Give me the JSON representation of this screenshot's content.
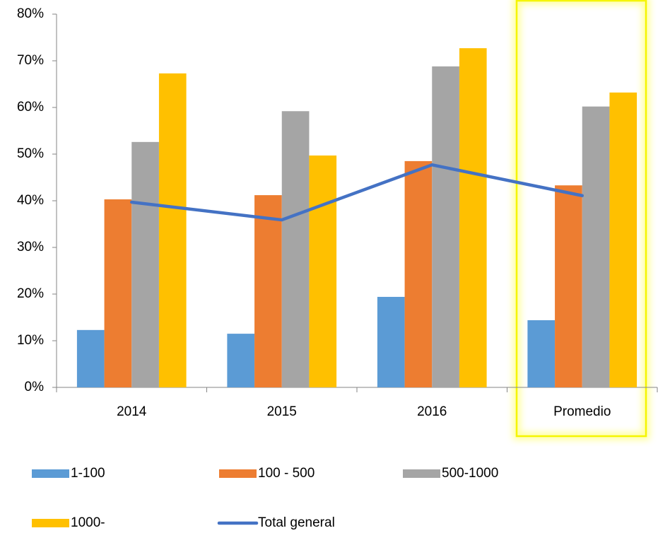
{
  "chart_data": {
    "type": "bar",
    "categories": [
      "2014",
      "2015",
      "2016",
      "Promedio"
    ],
    "series": [
      {
        "name": "1-100",
        "color": "#5b9bd5",
        "values": [
          12.3,
          11.5,
          19.4,
          14.4
        ]
      },
      {
        "name": "100 - 500",
        "color": "#ed7d31",
        "values": [
          40.3,
          41.2,
          48.5,
          43.3
        ]
      },
      {
        "name": "500-1000",
        "color": "#a5a5a5",
        "values": [
          52.6,
          59.2,
          68.8,
          60.2
        ]
      },
      {
        "name": "1000-",
        "color": "#ffc000",
        "values": [
          67.3,
          49.7,
          72.7,
          63.2
        ]
      },
      {
        "name": "Total general",
        "color": "#4472c4",
        "type": "line",
        "values": [
          39.7,
          35.9,
          47.7,
          41.1
        ]
      }
    ],
    "ylim": [
      0,
      80
    ],
    "yticks": [
      {
        "value": 0,
        "label": "0%"
      },
      {
        "value": 10,
        "label": "10%"
      },
      {
        "value": 20,
        "label": "20%"
      },
      {
        "value": 30,
        "label": "30%"
      },
      {
        "value": 40,
        "label": "40%"
      },
      {
        "value": 50,
        "label": "50%"
      },
      {
        "value": 60,
        "label": "60%"
      },
      {
        "value": 70,
        "label": "70%"
      },
      {
        "value": 80,
        "label": "80%"
      }
    ],
    "grid": false,
    "legend": "bottom"
  }
}
